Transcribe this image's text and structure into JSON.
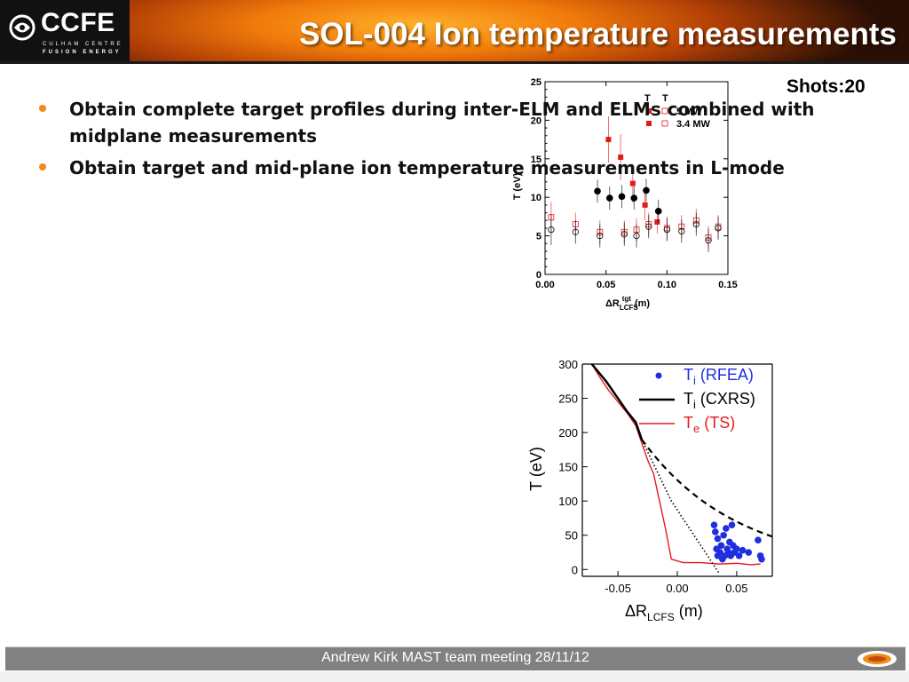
{
  "header": {
    "logo_title": "CCFE",
    "logo_line1": "CULHAM CENTRE",
    "logo_line2": "FUSION ENERGY",
    "title": "SOL-004 Ion temperature measurements"
  },
  "shots_label": "Shots:20",
  "bullets": [
    "Obtain complete target profiles during inter-ELM and ELMs combined with midplane measurements",
    "Obtain target and mid-plane ion temperature measurements in L-mode"
  ],
  "footer": {
    "text": "Andrew Kirk MAST team meeting 28/11/12"
  },
  "colors": {
    "accent": "#f08a1a",
    "footer_bg": "#818181",
    "red": "#e31b1b",
    "blue": "#1f2fe0"
  },
  "chart_data": [
    {
      "type": "scatter",
      "xlabel": "ΔR",
      "xlabel_sub": "LCFS",
      "xlabel_sup": "tgt",
      "xlabel_unit": "(m)",
      "ylabel": "T (eV)",
      "xlim": [
        0.0,
        0.15
      ],
      "ylim": [
        0,
        25
      ],
      "xticks": [
        "0.00",
        "0.05",
        "0.10",
        "0.15"
      ],
      "yticks": [
        "0",
        "5",
        "10",
        "15",
        "20",
        "25"
      ],
      "legend": {
        "title1": "T",
        "title2": "T",
        "entries": [
          "5 MW",
          "3.4 MW"
        ]
      },
      "series": [
        {
          "name": "5 MW",
          "marker": "square-filled",
          "color": "#e31b1b",
          "x": [
            0.052,
            0.062,
            0.072,
            0.082,
            0.092
          ],
          "y": [
            17.5,
            15.2,
            11.8,
            9.0,
            6.8
          ],
          "err": [
            3.0,
            3.0,
            2.5,
            2.0,
            1.5
          ]
        },
        {
          "name": "3.4 MW",
          "marker": "square-open",
          "color": "#e31b1b",
          "x": [
            0.005,
            0.025,
            0.045,
            0.065,
            0.075,
            0.085,
            0.1,
            0.112,
            0.124,
            0.134,
            0.142
          ],
          "y": [
            7.4,
            6.5,
            5.5,
            5.5,
            5.8,
            6.5,
            6.0,
            6.2,
            7.0,
            4.8,
            6.2
          ],
          "err": [
            2.0,
            1.5,
            1.5,
            1.5,
            1.5,
            1.5,
            1.5,
            1.5,
            1.5,
            1.5,
            1.5
          ]
        },
        {
          "name": "",
          "marker": "circle-filled",
          "color": "#000000",
          "x": [
            0.043,
            0.053,
            0.063,
            0.073,
            0.083,
            0.093
          ],
          "y": [
            10.8,
            9.9,
            10.1,
            9.9,
            10.9,
            8.2
          ],
          "err": [
            1.5,
            1.5,
            1.5,
            1.5,
            1.5,
            1.5
          ]
        },
        {
          "name": "",
          "marker": "circle-open",
          "color": "#000000",
          "x": [
            0.005,
            0.025,
            0.045,
            0.065,
            0.075,
            0.085,
            0.1,
            0.112,
            0.124,
            0.134,
            0.142
          ],
          "y": [
            5.8,
            5.5,
            5.0,
            5.2,
            5.0,
            6.2,
            5.8,
            5.6,
            6.5,
            4.4,
            6.0
          ],
          "err": [
            2.0,
            1.5,
            1.5,
            1.5,
            1.5,
            1.5,
            1.5,
            1.5,
            1.5,
            1.5,
            1.5
          ]
        }
      ]
    },
    {
      "type": "scatter",
      "xlabel": "ΔR",
      "xlabel_sub": "LCFS",
      "xlabel_unit": "(m)",
      "ylabel": "T (eV)",
      "xlim": [
        -0.08,
        0.08
      ],
      "ylim": [
        -10,
        300
      ],
      "xticks": [
        "-0.05",
        "0.00",
        "0.05"
      ],
      "xtick_values": [
        -0.05,
        0.0,
        0.05
      ],
      "yticks": [
        "0",
        "50",
        "100",
        "150",
        "200",
        "250",
        "300"
      ],
      "legend": [
        {
          "main": "T",
          "sub": "i",
          "rest": "(RFEA)",
          "color": "#1f2fe0",
          "marker": "dot"
        },
        {
          "main": "T",
          "sub": "i",
          "rest": "(CXRS)",
          "color": "#000000",
          "marker": "line"
        },
        {
          "main": "T",
          "sub": "e",
          "rest": "(TS)",
          "color": "#e31b1b",
          "marker": "line"
        }
      ],
      "series": [
        {
          "name": "Ti (RFEA)",
          "type": "scatter",
          "color": "#1f2fe0",
          "x": [
            0.031,
            0.032,
            0.033,
            0.034,
            0.034,
            0.036,
            0.037,
            0.038,
            0.039,
            0.04,
            0.041,
            0.042,
            0.043,
            0.044,
            0.045,
            0.046,
            0.047,
            0.048,
            0.05,
            0.052,
            0.055,
            0.06,
            0.068,
            0.07,
            0.071
          ],
          "y": [
            65,
            55,
            30,
            20,
            45,
            25,
            35,
            15,
            50,
            20,
            60,
            30,
            25,
            40,
            20,
            65,
            35,
            25,
            30,
            20,
            28,
            25,
            43,
            20,
            15
          ]
        },
        {
          "name": "Ti (CXRS)",
          "type": "line",
          "color": "#000000",
          "x": [
            -0.072,
            -0.06,
            -0.05,
            -0.042,
            -0.035,
            -0.03
          ],
          "y": [
            300,
            275,
            250,
            230,
            215,
            190
          ]
        },
        {
          "name": "Te (TS)",
          "type": "line",
          "color": "#e31b1b",
          "x": [
            -0.072,
            -0.065,
            -0.058,
            -0.05,
            -0.042,
            -0.035,
            -0.03,
            -0.025,
            -0.02,
            -0.015,
            -0.01,
            -0.005,
            0.005,
            0.02,
            0.035,
            0.05,
            0.062,
            0.07
          ],
          "y": [
            300,
            280,
            262,
            245,
            228,
            210,
            185,
            160,
            140,
            100,
            60,
            15,
            10,
            10,
            8,
            9,
            7,
            8
          ]
        }
      ]
    }
  ]
}
